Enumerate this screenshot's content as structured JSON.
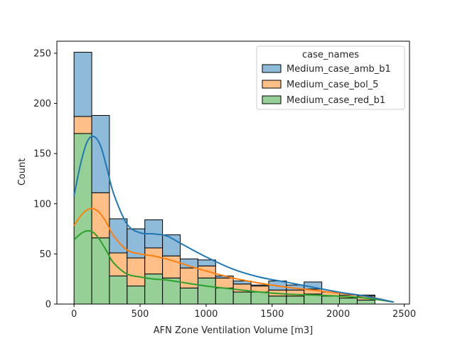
{
  "chart_data": {
    "type": "bar",
    "subtype": "stacked-histogram-with-kde",
    "xlabel": "AFN Zone Ventilation Volume [m3]",
    "ylabel": "Count",
    "xlim": [
      -130,
      2540
    ],
    "ylim": [
      0,
      262
    ],
    "xticks": [
      0,
      500,
      1000,
      1500,
      2000,
      2500
    ],
    "yticks": [
      0,
      50,
      100,
      150,
      200,
      250
    ],
    "bin_edges": [
      0,
      134,
      268,
      402,
      536,
      670,
      804,
      938,
      1072,
      1206,
      1340,
      1474,
      1608,
      1742,
      1876,
      2010,
      2144,
      2278,
      2412
    ],
    "legend": {
      "title": "case_names",
      "placement": "upper right"
    },
    "series": [
      {
        "name": "Medium_case_red_b1",
        "color": "#2ca02c",
        "values": [
          170,
          66,
          28,
          18,
          30,
          26,
          16,
          26,
          16,
          12,
          12,
          8,
          8,
          10,
          8,
          6,
          4,
          0
        ],
        "kde_x": [
          0,
          50,
          100,
          150,
          200,
          250,
          300,
          400,
          500,
          600,
          700,
          800,
          1000,
          1200,
          1400,
          1600,
          1800,
          2000,
          2200,
          2420
        ],
        "kde_y": [
          64,
          70,
          73,
          71,
          63,
          52,
          41,
          30,
          27,
          25,
          24,
          22,
          18,
          15,
          12,
          10,
          9,
          8,
          6,
          2
        ]
      },
      {
        "name": "Medium_case_bol_5",
        "color": "#ff7f0e",
        "values": [
          17,
          45,
          23,
          28,
          26,
          22,
          20,
          12,
          10,
          8,
          6,
          6,
          6,
          5,
          4,
          3,
          4,
          0
        ],
        "kde_x": [
          0,
          50,
          100,
          150,
          200,
          250,
          300,
          400,
          500,
          600,
          700,
          800,
          1000,
          1200,
          1400,
          1600,
          1800,
          2000,
          2200,
          2420
        ],
        "kde_y": [
          78,
          88,
          94,
          95,
          90,
          80,
          68,
          54,
          50,
          48,
          45,
          41,
          33,
          26,
          21,
          17,
          14,
          11,
          8,
          2
        ]
      },
      {
        "name": "Medium_case_amb_b1",
        "color": "#1f77b4",
        "values": [
          64,
          77,
          34,
          29,
          28,
          21,
          9,
          6,
          2,
          3,
          1,
          9,
          5,
          7,
          0,
          0,
          1,
          0
        ],
        "kde_x": [
          0,
          50,
          100,
          150,
          200,
          250,
          300,
          400,
          500,
          600,
          700,
          800,
          1000,
          1200,
          1400,
          1600,
          1800,
          2000,
          2200,
          2420
        ],
        "kde_y": [
          108,
          140,
          162,
          167,
          158,
          135,
          110,
          80,
          71,
          70,
          68,
          61,
          47,
          35,
          27,
          22,
          17,
          12,
          8,
          2
        ]
      }
    ]
  }
}
